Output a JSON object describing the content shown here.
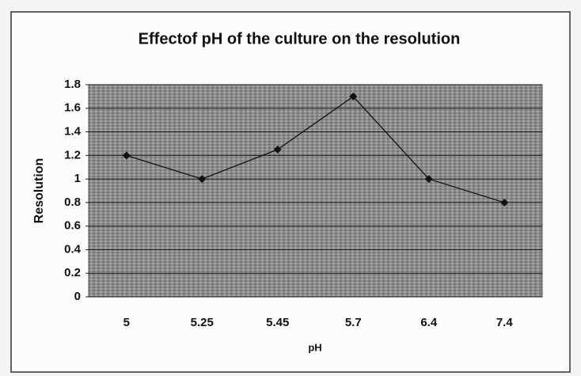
{
  "chart_data": {
    "type": "line",
    "title": "Effectof pH of the culture on the resolution",
    "x_label": "pH",
    "y_label": "Resolution",
    "categories": [
      "5",
      "5.25",
      "5.45",
      "5.7",
      "6.4",
      "7.4"
    ],
    "values": [
      1.2,
      1.0,
      1.25,
      1.7,
      1.0,
      0.8
    ],
    "color": "#111111",
    "ylim": [
      0,
      1.8
    ],
    "yticks": [
      0,
      0.2,
      0.4,
      0.6,
      0.8,
      1,
      1.2,
      1.4,
      1.6,
      1.8
    ],
    "grid": true
  }
}
